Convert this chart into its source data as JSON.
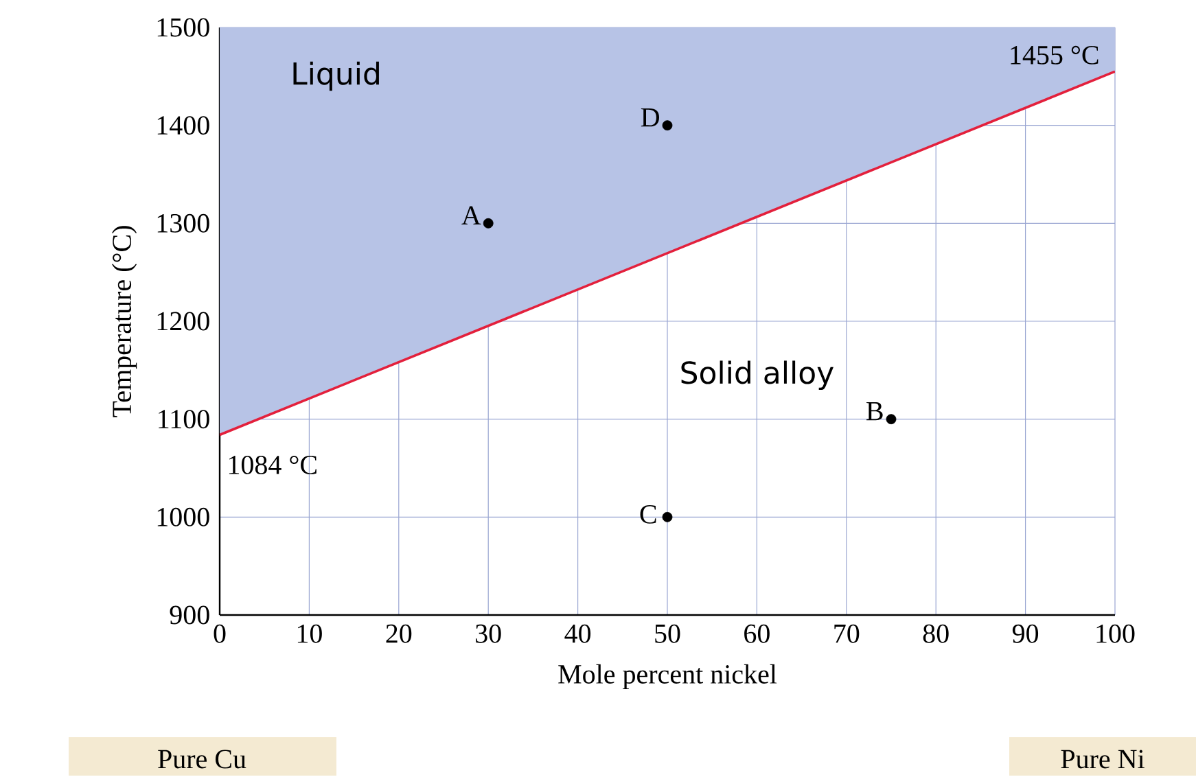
{
  "chart_data": {
    "type": "line",
    "xlabel": "Mole percent nickel",
    "ylabel": "Temperature (°C)",
    "xlim": [
      0,
      100
    ],
    "ylim": [
      900,
      1500
    ],
    "xticks": [
      0,
      10,
      20,
      30,
      40,
      50,
      60,
      70,
      80,
      90,
      100
    ],
    "yticks": [
      900,
      1000,
      1100,
      1200,
      1300,
      1400,
      1500
    ],
    "grid": true,
    "series": [
      {
        "type": "area",
        "color": "#b7c3e6",
        "x": [
          0,
          0,
          100,
          100
        ],
        "values": [
          1084,
          1500,
          1500,
          1455
        ]
      },
      {
        "color": "#e3203c",
        "x": [
          0,
          100
        ],
        "values": [
          1084,
          1455
        ]
      },
      {
        "type": "scatter",
        "color": "#000000",
        "marker": "circle",
        "x": [
          30,
          75,
          50,
          50
        ],
        "values": [
          1300,
          1100,
          1000,
          1400
        ]
      }
    ],
    "annotations": [
      {
        "text": "A",
        "x": 30,
        "y": 1300
      },
      {
        "text": "B",
        "x": 75,
        "y": 1100
      },
      {
        "text": "C",
        "x": 50,
        "y": 1000
      },
      {
        "text": "D",
        "x": 50,
        "y": 1400
      },
      "Liquid",
      "Solid alloy",
      {
        "text": "1084 °C",
        "x": 0,
        "y": 1084
      },
      {
        "text": "1455 °C",
        "x": 100,
        "y": 1455
      },
      "Pure Cu",
      "Pure Ni"
    ]
  }
}
